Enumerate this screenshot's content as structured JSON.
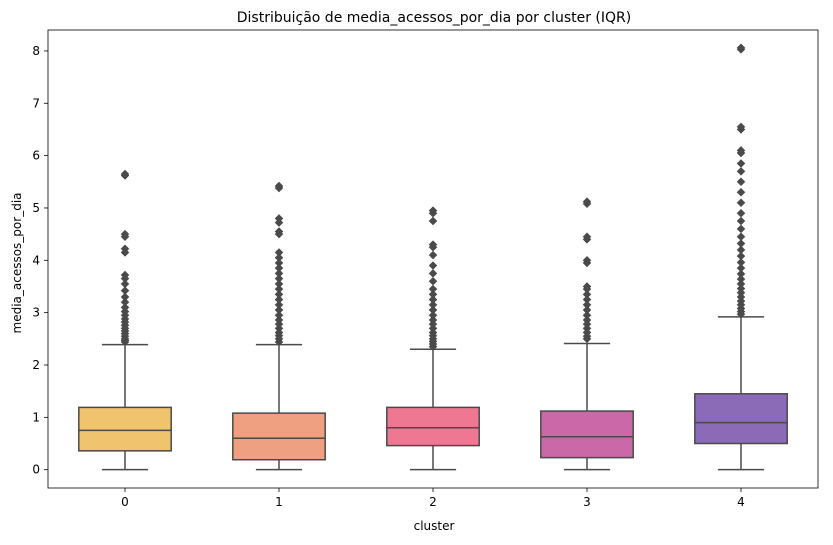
{
  "chart_data": {
    "type": "box",
    "title": "Distribuição de media_acessos_por_dia por cluster (IQR)",
    "xlabel": "cluster",
    "ylabel": "media_acessos_por_dia",
    "ylim": [
      -0.35,
      8.4
    ],
    "yticks": [
      0,
      1,
      2,
      3,
      4,
      5,
      6,
      7,
      8
    ],
    "categories": [
      "0",
      "1",
      "2",
      "3",
      "4"
    ],
    "colors": [
      "#F0C46E",
      "#EFA080",
      "#EE7891",
      "#CA68A8",
      "#8B6BB8"
    ],
    "edge_color": "#4a4a4a",
    "boxes": [
      {
        "cluster": "0",
        "min": 0.0,
        "q1": 0.36,
        "median": 0.75,
        "q3": 1.19,
        "max": 2.39,
        "outliers": [
          2.44,
          2.47,
          2.5,
          2.55,
          2.6,
          2.65,
          2.7,
          2.76,
          2.82,
          2.88,
          2.95,
          3.02,
          3.1,
          3.2,
          3.3,
          3.42,
          3.55,
          3.65,
          3.72,
          4.15,
          4.22,
          4.45,
          4.5,
          5.62,
          5.65
        ]
      },
      {
        "cluster": "1",
        "min": 0.0,
        "q1": 0.19,
        "median": 0.6,
        "q3": 1.08,
        "max": 2.39,
        "outliers": [
          2.44,
          2.5,
          2.56,
          2.62,
          2.7,
          2.78,
          2.86,
          2.95,
          3.05,
          3.15,
          3.25,
          3.35,
          3.45,
          3.55,
          3.65,
          3.75,
          3.85,
          3.95,
          4.05,
          4.15,
          4.5,
          4.55,
          4.72,
          4.8,
          5.38,
          5.42
        ]
      },
      {
        "cluster": "2",
        "min": 0.0,
        "q1": 0.46,
        "median": 0.8,
        "q3": 1.19,
        "max": 2.3,
        "outliers": [
          2.35,
          2.4,
          2.45,
          2.5,
          2.56,
          2.62,
          2.7,
          2.78,
          2.86,
          2.95,
          3.05,
          3.15,
          3.25,
          3.35,
          3.45,
          3.6,
          3.75,
          3.9,
          4.1,
          4.25,
          4.3,
          4.75,
          4.9,
          4.95
        ]
      },
      {
        "cluster": "3",
        "min": 0.0,
        "q1": 0.23,
        "median": 0.63,
        "q3": 1.12,
        "max": 2.41,
        "outliers": [
          2.5,
          2.55,
          2.62,
          2.7,
          2.78,
          2.86,
          2.95,
          3.05,
          3.15,
          3.25,
          3.35,
          3.45,
          3.5,
          3.95,
          4.0,
          4.4,
          4.45,
          5.08,
          5.12
        ]
      },
      {
        "cluster": "4",
        "min": 0.0,
        "q1": 0.5,
        "median": 0.9,
        "q3": 1.45,
        "max": 2.92,
        "outliers": [
          2.97,
          3.02,
          3.08,
          3.15,
          3.22,
          3.3,
          3.38,
          3.46,
          3.55,
          3.64,
          3.74,
          3.85,
          3.96,
          4.08,
          4.2,
          4.32,
          4.45,
          4.6,
          4.75,
          4.9,
          5.1,
          5.3,
          5.5,
          5.7,
          5.85,
          6.05,
          6.1,
          6.5,
          6.55,
          8.03,
          8.06
        ]
      }
    ]
  }
}
